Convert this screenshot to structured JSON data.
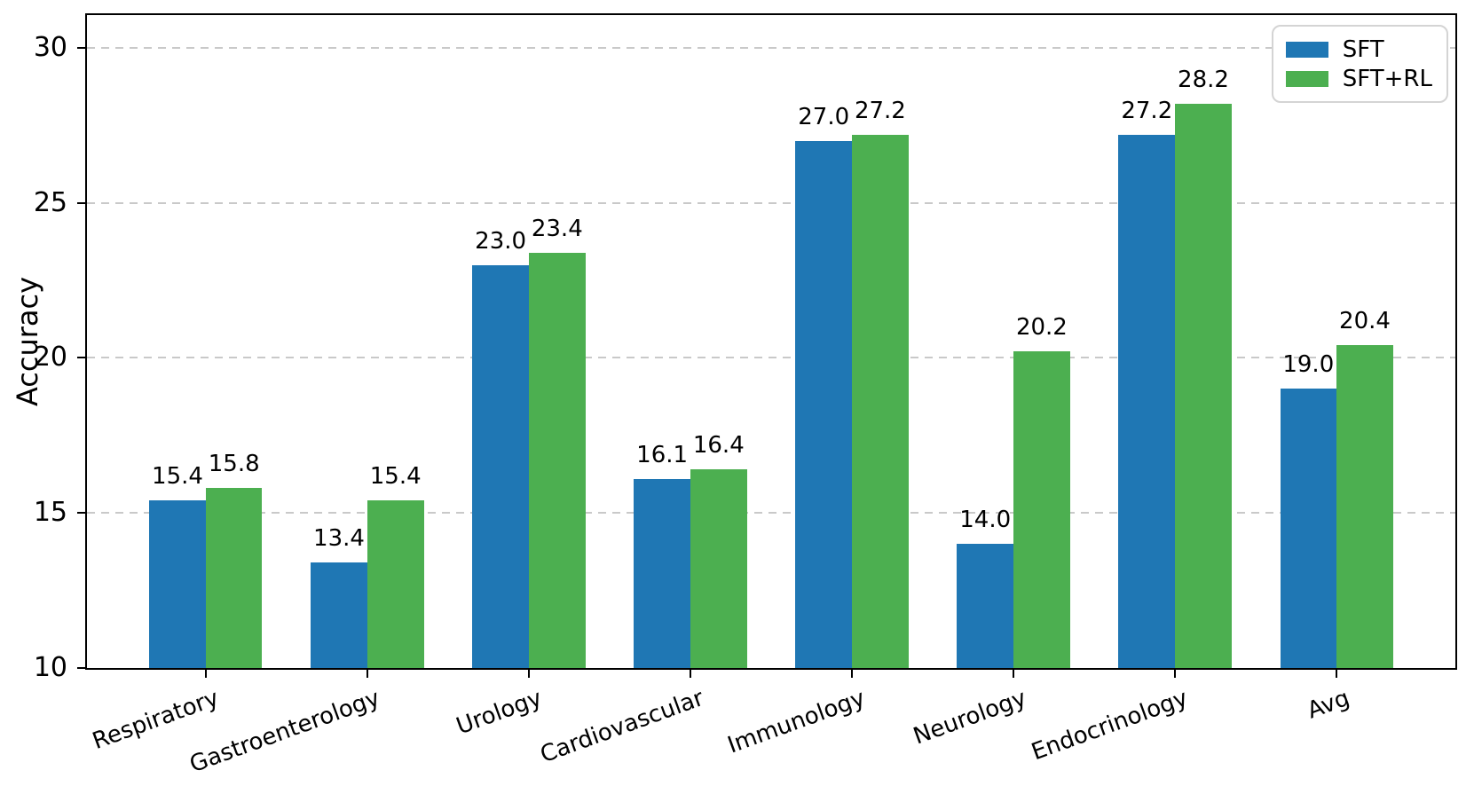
{
  "chart_data": {
    "type": "bar",
    "title": "",
    "xlabel": "",
    "ylabel": "Accuracy",
    "categories": [
      "Respiratory",
      "Gastroenterology",
      "Urology",
      "Cardiovascular",
      "Immunology",
      "Neurology",
      "Endocrinology",
      "Avg"
    ],
    "series": [
      {
        "name": "SFT",
        "color": "#1f77b4",
        "values": [
          15.4,
          13.4,
          23.0,
          16.1,
          27.0,
          14.0,
          27.2,
          19.0
        ]
      },
      {
        "name": "SFT+RL",
        "color": "#4caf50",
        "values": [
          15.8,
          15.4,
          23.4,
          16.4,
          27.2,
          20.2,
          28.2,
          20.4
        ]
      }
    ],
    "ylim": [
      10,
      31.05
    ],
    "yticks": [
      10,
      15,
      20,
      25,
      30
    ],
    "grid": "horizontal-dashed",
    "gridline_color": "#c9c9c9",
    "axis_color": "#000000",
    "legend_position": "upper-right",
    "bar_label_decimals": 1,
    "xtick_rotation_deg": 20
  }
}
